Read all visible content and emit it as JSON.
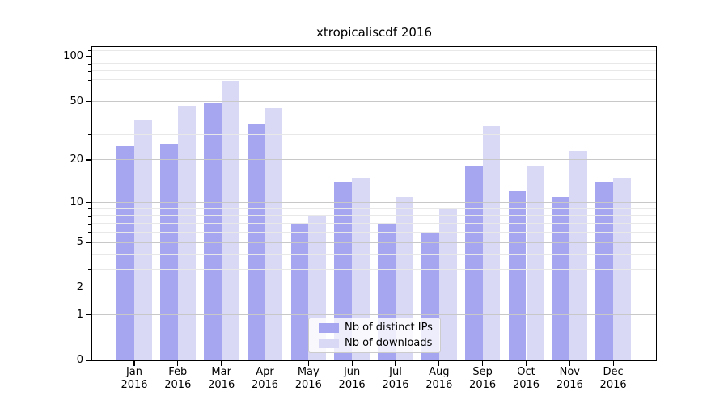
{
  "chart_data": {
    "type": "bar",
    "title": "xtropicaliscdf 2016",
    "year": "2016",
    "months": [
      "Jan",
      "Feb",
      "Mar",
      "Apr",
      "May",
      "Jun",
      "Jul",
      "Aug",
      "Sep",
      "Oct",
      "Nov",
      "Dec"
    ],
    "categories": [
      "Jan 2016",
      "Feb 2016",
      "Mar 2016",
      "Apr 2016",
      "May 2016",
      "Jun 2016",
      "Jul 2016",
      "Aug 2016",
      "Sep 2016",
      "Oct 2016",
      "Nov 2016",
      "Dec 2016"
    ],
    "series": [
      {
        "name": "Nb of distinct IPs",
        "color": "#a5a5f0",
        "values": [
          25,
          26,
          49,
          35,
          7,
          14,
          7,
          6,
          18,
          12,
          11,
          14
        ]
      },
      {
        "name": "Nb of downloads",
        "color": "#d9d9f6",
        "values": [
          38,
          47,
          69,
          45,
          8,
          15,
          11,
          9,
          34,
          18,
          23,
          15
        ]
      }
    ],
    "xlabel": "",
    "ylabel": "",
    "y_scale": "log1p",
    "y_major_ticks": [
      100,
      50,
      20,
      10,
      5,
      2,
      1,
      0
    ],
    "y_minor_gridlines": [
      110,
      90,
      80,
      70,
      60,
      40,
      30,
      9,
      8,
      7,
      6,
      4,
      3
    ],
    "ylim": [
      0,
      116
    ],
    "grid": true,
    "legend_position": "lower center",
    "colors": {
      "grid_major": "#c8c8c8",
      "grid_minor": "#e8e8e8",
      "axis": "#000000",
      "text": "#000000",
      "background": "#ffffff"
    }
  }
}
